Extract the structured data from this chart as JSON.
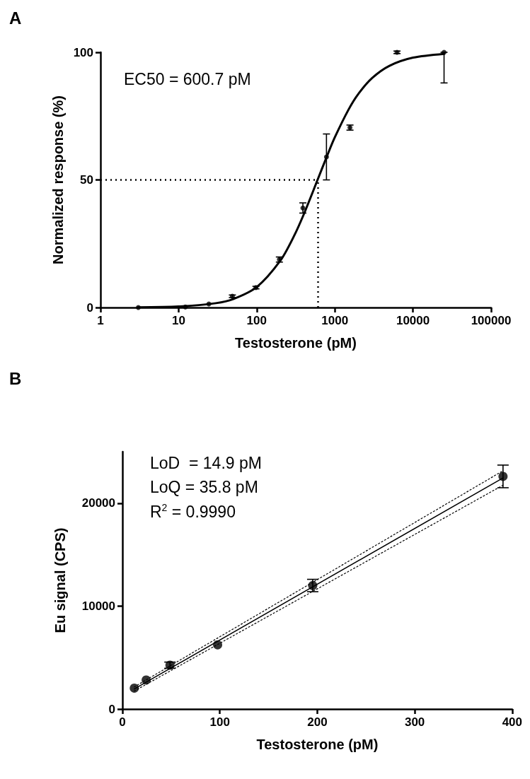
{
  "chart_data": [
    {
      "type": "scatter",
      "title": "A",
      "xlabel": "Testosterone (pM)",
      "ylabel": "Normalized response (%)",
      "log": "x",
      "xlim": [
        1,
        100000
      ],
      "xticks": [
        1,
        10,
        100,
        1000,
        10000,
        100000
      ],
      "ylim": [
        0,
        100
      ],
      "yticks": [
        0,
        50,
        100
      ],
      "annotations": [
        "EC50 = 600.7 pM"
      ],
      "ref_lines": [
        {
          "axis": "x",
          "value": 600.7,
          "line_style": "dotted",
          "color": "#000000"
        },
        {
          "axis": "y",
          "value": 50,
          "line_style": "dotted",
          "color": "#000000"
        }
      ],
      "series": [
        {
          "marker": "circle",
          "color": "#000000",
          "x": [
            3.05,
            12.2,
            24.4,
            48.8,
            97.7,
            195,
            390,
            781,
            1562,
            6250,
            25000
          ],
          "values": [
            0,
            0.2,
            1.4,
            4.4,
            7.8,
            18.8,
            39,
            59,
            70.5,
            100,
            100
          ],
          "errors": [
            null,
            null,
            null,
            0.5,
            0.5,
            1,
            2,
            9,
            1,
            0.5,
            [
              88,
              100
            ]
          ]
        },
        {
          "type": "line",
          "marker": "none",
          "color": "#000000",
          "line_style": "solid",
          "x": [
            3,
            10,
            30,
            50,
            100,
            200,
            300,
            400,
            600.7,
            800,
            1000,
            1500,
            2000,
            3000,
            5000,
            10000,
            25000
          ],
          "values": [
            0.1,
            0.4,
            1.7,
            3.3,
            8,
            18.3,
            28,
            36.5,
            50,
            59.6,
            66.7,
            77.6,
            83.7,
            89.9,
            94.7,
            97.9,
            99.4
          ]
        }
      ]
    },
    {
      "type": "scatter",
      "title": "B",
      "xlabel": "Testosterone (pM)",
      "ylabel": "Eu signal (CPS)",
      "xlim": [
        0,
        400
      ],
      "xticks": [
        0,
        100,
        200,
        300,
        400
      ],
      "ylim": [
        0,
        25000
      ],
      "yticks": [
        0,
        10000,
        20000
      ],
      "annotations": [
        "LoD  = 14.9 pM",
        "LoQ = 35.8 pM",
        "R$^{2}$ = 0.9990"
      ],
      "series": [
        {
          "marker": "circle",
          "color": "#000000",
          "x": [
            12.2,
            24.4,
            48.8,
            97.7,
            195.3,
            390.6
          ],
          "values": [
            2030,
            2820,
            4260,
            6240,
            12000,
            22600
          ],
          "errors": [
            null,
            null,
            300,
            null,
            600,
            1100
          ]
        },
        {
          "type": "line",
          "marker": "none",
          "color": "#000000",
          "line_style": "solid",
          "x": [
            12.2,
            390.6
          ],
          "values": [
            1950,
            22450
          ]
        },
        {
          "type": "line",
          "marker": "none",
          "color": "#000000",
          "line_style": "dotted",
          "x": [
            12.2,
            390.6
          ],
          "values": [
            1750,
            21750
          ]
        },
        {
          "type": "line",
          "marker": "none",
          "color": "#000000",
          "line_style": "dotted",
          "x": [
            12.2,
            390.6
          ],
          "values": [
            2150,
            23150
          ]
        }
      ]
    }
  ]
}
